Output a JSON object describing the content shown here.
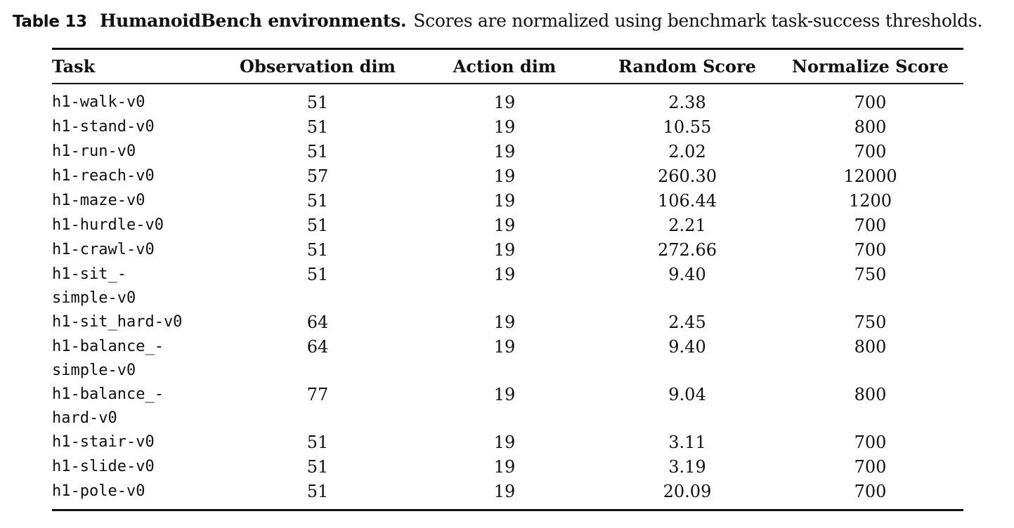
{
  "caption": {
    "label": "Table 13",
    "title": "HumanoidBench environments.",
    "text": "Scores are normalized using benchmark task-success thresholds."
  },
  "table": {
    "headers": [
      "Task",
      "Observation dim",
      "Action dim",
      "Random Score",
      "Normalize Score"
    ],
    "rows": [
      {
        "task": [
          "h1-walk-v0"
        ],
        "obs": "51",
        "act": "19",
        "random": "2.38",
        "normalize": "700"
      },
      {
        "task": [
          "h1-stand-v0"
        ],
        "obs": "51",
        "act": "19",
        "random": "10.55",
        "normalize": "800"
      },
      {
        "task": [
          "h1-run-v0"
        ],
        "obs": "51",
        "act": "19",
        "random": "2.02",
        "normalize": "700"
      },
      {
        "task": [
          "h1-reach-v0"
        ],
        "obs": "57",
        "act": "19",
        "random": "260.30",
        "normalize": "12000"
      },
      {
        "task": [
          "h1-maze-v0"
        ],
        "obs": "51",
        "act": "19",
        "random": "106.44",
        "normalize": "1200"
      },
      {
        "task": [
          "h1-hurdle-v0"
        ],
        "obs": "51",
        "act": "19",
        "random": "2.21",
        "normalize": "700"
      },
      {
        "task": [
          "h1-crawl-v0"
        ],
        "obs": "51",
        "act": "19",
        "random": "272.66",
        "normalize": "700"
      },
      {
        "task": [
          "h1-sit_-",
          "simple-v0"
        ],
        "obs": "51",
        "act": "19",
        "random": "9.40",
        "normalize": "750"
      },
      {
        "task": [
          "h1-sit_hard-v0"
        ],
        "obs": "64",
        "act": "19",
        "random": "2.45",
        "normalize": "750"
      },
      {
        "task": [
          "h1-balance_-",
          "simple-v0"
        ],
        "obs": "64",
        "act": "19",
        "random": "9.40",
        "normalize": "800"
      },
      {
        "task": [
          "h1-balance_-",
          "hard-v0"
        ],
        "obs": "77",
        "act": "19",
        "random": "9.04",
        "normalize": "800"
      },
      {
        "task": [
          "h1-stair-v0"
        ],
        "obs": "51",
        "act": "19",
        "random": "3.11",
        "normalize": "700"
      },
      {
        "task": [
          "h1-slide-v0"
        ],
        "obs": "51",
        "act": "19",
        "random": "3.19",
        "normalize": "700"
      },
      {
        "task": [
          "h1-pole-v0"
        ],
        "obs": "51",
        "act": "19",
        "random": "20.09",
        "normalize": "700"
      }
    ]
  }
}
